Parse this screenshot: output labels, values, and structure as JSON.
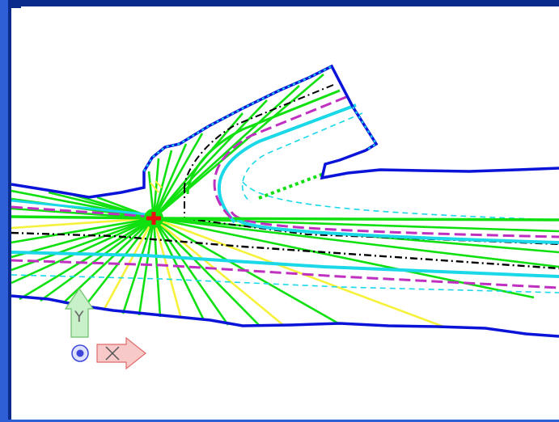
{
  "window": {
    "frame_color": "#2f5fd6",
    "title_bar_color": "#0a2a8c"
  },
  "drawing": {
    "background": "#ffffff",
    "colors": {
      "boundary": "#0a14d8",
      "ray": "#10e010",
      "ray_alt": "#f6f13a",
      "cyan": "#1ad8e8",
      "magenta": "#c030c0",
      "dash_dot": "#000000",
      "center": "#e81010"
    },
    "center_marker_icon": "red-cross-marker"
  },
  "ucs_icon": {
    "y_label": "Y",
    "x_icon": "x-cross-arrow",
    "origin_icon": "origin-circle",
    "y_color": "#7fd37f",
    "x_color": "#f08080",
    "origin_color": "#3c46d8"
  }
}
